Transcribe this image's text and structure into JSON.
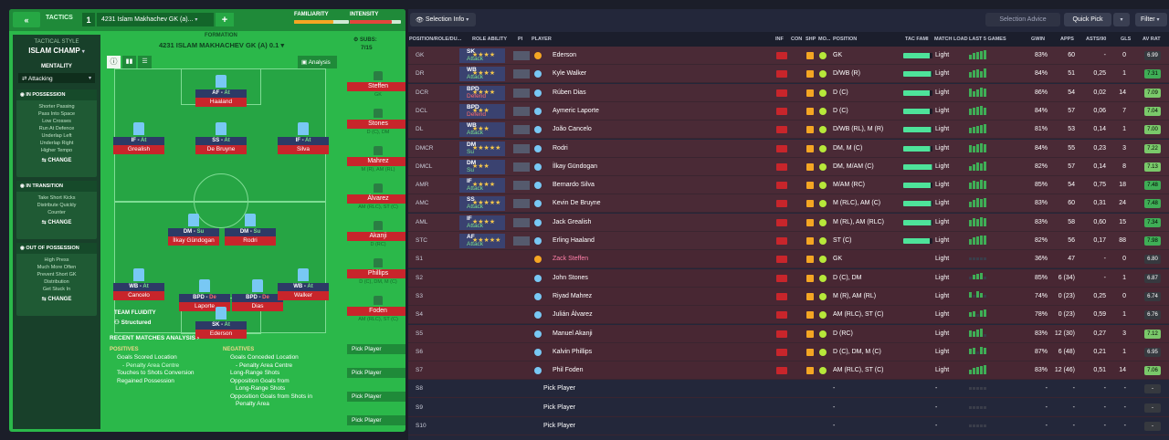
{
  "tactics": {
    "collapse_icon": "«",
    "header_label": "TACTICS",
    "slot_number": "1",
    "tactic_name": "4231 Islam Makhachev GK (a)...",
    "add_label": "+",
    "familiarity_label": "FAMILIARITY",
    "familiarity_value": 0.72,
    "intensity_label": "INTENSITY",
    "intensity_value": 0.82,
    "style_label": "TACTICAL STYLE",
    "style_name": "ISLAM CHAMP",
    "mentality_label": "MENTALITY",
    "mentality_value": "Attacking",
    "in_possession": {
      "title": "IN POSSESSION",
      "items": [
        "Shorter Passing",
        "Pass Into Space",
        "Low Crosses",
        "Run At Defence",
        "Underlap Left",
        "Underlap Right",
        "Higher Tempo"
      ],
      "change": "CHANGE"
    },
    "in_transition": {
      "title": "IN TRANSITION",
      "items": [
        "Take Short Kicks",
        "Distribute Quickly",
        "Counter"
      ],
      "change": "CHANGE"
    },
    "out_possession": {
      "title": "OUT OF POSSESSION",
      "items": [
        "High Press",
        "Much More Often",
        "Prevent Short GK",
        "Distribution",
        "Get Stuck In"
      ],
      "change": "CHANGE"
    },
    "formation_label": "FORMATION",
    "formation_name": "4231 ISLAM MAKHACHEV GK (A) 0.1",
    "subs_label": "SUBS:",
    "subs_count": "7/15",
    "analysis_label": "Analysis",
    "fluidity_label": "TEAM FLUIDITY",
    "fluidity_value": "Structured",
    "recent_label": "RECENT MATCHES ANALYSIS",
    "positives_label": "POSITIVES",
    "positives": [
      "Goals Scored Location",
      "- Penalty Area Centre",
      "Touches to Shots Conversion",
      "Regained Possession"
    ],
    "negatives_label": "NEGATIVES",
    "negatives": [
      "Goals Conceded Location",
      "- Penalty Area Centre",
      "Long-Range Shots",
      "Opposition Goals from",
      "Long-Range Shots",
      "Opposition Goals from Shots in",
      "Penalty Area"
    ],
    "players": [
      {
        "role": "AF",
        "duty": "At",
        "name": "Haaland"
      },
      {
        "role": "IF",
        "duty": "At",
        "name": "Grealish"
      },
      {
        "role": "SS",
        "duty": "At",
        "name": "De Bruyne"
      },
      {
        "role": "IF",
        "duty": "At",
        "name": "Silva"
      },
      {
        "role": "DM",
        "duty": "Su",
        "name": "İlkay Gündogan"
      },
      {
        "role": "DM",
        "duty": "Su",
        "name": "Rodri"
      },
      {
        "role": "WB",
        "duty": "At",
        "name": "Cancelo"
      },
      {
        "role": "BPD",
        "duty": "De",
        "name": "Laporte"
      },
      {
        "role": "BPD",
        "duty": "De",
        "name": "Dias"
      },
      {
        "role": "WB",
        "duty": "At",
        "name": "Walker"
      },
      {
        "role": "SK",
        "duty": "At",
        "name": "Ederson"
      }
    ],
    "subs": [
      {
        "name": "Steffen",
        "pos": "GK"
      },
      {
        "name": "Stones",
        "pos": "D (C), DM"
      },
      {
        "name": "Mahrez",
        "pos": "M (R), AM (RL)"
      },
      {
        "name": "Álvarez",
        "pos": "AM (RLC), ST (C)"
      },
      {
        "name": "Akanji",
        "pos": "D (RC)"
      },
      {
        "name": "Phillips",
        "pos": "D (C), DM, M (C)"
      },
      {
        "name": "Foden",
        "pos": "AM (RLC), ST (C)"
      }
    ],
    "pick_player": "Pick Player"
  },
  "squad": {
    "selection_info": "Selection Info",
    "selection_advice": "Selection Advice",
    "quick_pick": "Quick Pick",
    "filter": "Filter",
    "headers": [
      "POSITION/ROLE/DU...",
      "ROLE ABILITY",
      "PI",
      "PLAYER",
      "INF",
      "CON",
      "SHP",
      "MO...",
      "POSITION",
      "TAC FAMI",
      "MATCH LOAD",
      "LAST 5 GAMES",
      "GWIN",
      "APPS",
      "ASTS/90",
      "GLS",
      "AV RAT"
    ],
    "rows": [
      {
        "slot": "GK",
        "role": "SK",
        "duty": "Attack",
        "stars": "★★★★",
        "name": "Ederson",
        "position": "GK",
        "load": "Light",
        "gwin": "83%",
        "apps": "60",
        "asts": "-",
        "gls": "0",
        "rat": "6.99"
      },
      {
        "slot": "DR",
        "role": "WB",
        "duty": "Attack",
        "stars": "★★★★",
        "name": "Kyle Walker",
        "position": "D/WB (R)",
        "load": "Light",
        "gwin": "84%",
        "apps": "51",
        "asts": "0,25",
        "gls": "1",
        "rat": "7.31"
      },
      {
        "slot": "DCR",
        "role": "BPD",
        "duty": "Defend",
        "stars": "★★★★",
        "name": "Rúben Dias",
        "position": "D (C)",
        "load": "Light",
        "gwin": "86%",
        "apps": "54",
        "asts": "0,02",
        "gls": "14",
        "rat": "7.09"
      },
      {
        "slot": "DCL",
        "role": "BPD",
        "duty": "Defend",
        "stars": "★★★",
        "name": "Aymeric Laporte",
        "position": "D (C)",
        "load": "Light",
        "gwin": "84%",
        "apps": "57",
        "asts": "0,06",
        "gls": "7",
        "rat": "7.04"
      },
      {
        "slot": "DL",
        "role": "WB",
        "duty": "Attack",
        "stars": "★★★",
        "name": "João Cancelo",
        "position": "D/WB (RL), M (R)",
        "load": "Light",
        "gwin": "81%",
        "apps": "53",
        "asts": "0,14",
        "gls": "1",
        "rat": "7.00"
      },
      {
        "slot": "DMCR",
        "role": "DM",
        "duty": "Su",
        "stars": "★★★★★",
        "name": "Rodri",
        "position": "DM, M (C)",
        "load": "Light",
        "gwin": "84%",
        "apps": "55",
        "asts": "0,23",
        "gls": "3",
        "rat": "7.22"
      },
      {
        "slot": "DMCL",
        "role": "DM",
        "duty": "Su",
        "stars": "★★★",
        "name": "İlkay Gündogan",
        "position": "DM, M/AM (C)",
        "load": "Light",
        "gwin": "82%",
        "apps": "57",
        "asts": "0,14",
        "gls": "8",
        "rat": "7.13"
      },
      {
        "slot": "AMR",
        "role": "IF",
        "duty": "Attack",
        "stars": "★★★★",
        "name": "Bernardo Silva",
        "position": "M/AM (RC)",
        "load": "Light",
        "gwin": "85%",
        "apps": "54",
        "asts": "0,75",
        "gls": "18",
        "rat": "7.48"
      },
      {
        "slot": "AMC",
        "role": "SS",
        "duty": "Attack",
        "stars": "★★★★★",
        "name": "Kevin De Bruyne",
        "position": "M (RLC), AM (C)",
        "load": "Light",
        "gwin": "83%",
        "apps": "60",
        "asts": "0,31",
        "gls": "24",
        "rat": "7.48"
      },
      {
        "slot": "AML",
        "role": "IF",
        "duty": "Attack",
        "stars": "★★★★",
        "name": "Jack Grealish",
        "position": "M (RL), AM (RLC)",
        "load": "Light",
        "gwin": "83%",
        "apps": "58",
        "asts": "0,60",
        "gls": "15",
        "rat": "7.34"
      },
      {
        "slot": "STC",
        "role": "AF",
        "duty": "Attack",
        "stars": "★★★★★",
        "name": "Erling Haaland",
        "position": "ST (C)",
        "load": "Light",
        "gwin": "82%",
        "apps": "56",
        "asts": "0,17",
        "gls": "88",
        "rat": "7.98"
      },
      {
        "slot": "S1",
        "role": "",
        "duty": "",
        "stars": "",
        "name": "Zack Steffen",
        "position": "GK",
        "load": "Light",
        "gwin": "36%",
        "apps": "47",
        "asts": "-",
        "gls": "0",
        "rat": "6.80"
      },
      {
        "slot": "S2",
        "role": "",
        "duty": "",
        "stars": "",
        "name": "John Stones",
        "position": "D (C), DM",
        "load": "Light",
        "gwin": "85%",
        "apps": "6 (34)",
        "asts": "-",
        "gls": "1",
        "rat": "6.87"
      },
      {
        "slot": "S3",
        "role": "",
        "duty": "",
        "stars": "",
        "name": "Riyad Mahrez",
        "position": "M (R), AM (RL)",
        "load": "Light",
        "gwin": "74%",
        "apps": "0 (23)",
        "asts": "0,25",
        "gls": "0",
        "rat": "6.74"
      },
      {
        "slot": "S4",
        "role": "",
        "duty": "",
        "stars": "",
        "name": "Julián Álvarez",
        "position": "AM (RLC), ST (C)",
        "load": "Light",
        "gwin": "78%",
        "apps": "0 (23)",
        "asts": "0,59",
        "gls": "1",
        "rat": "6.76"
      },
      {
        "slot": "S5",
        "role": "",
        "duty": "",
        "stars": "",
        "name": "Manuel Akanji",
        "position": "D (RC)",
        "load": "Light",
        "gwin": "83%",
        "apps": "12 (30)",
        "asts": "0,27",
        "gls": "3",
        "rat": "7.12"
      },
      {
        "slot": "S6",
        "role": "",
        "duty": "",
        "stars": "",
        "name": "Kalvin Phillips",
        "position": "D (C), DM, M (C)",
        "load": "Light",
        "gwin": "87%",
        "apps": "6 (48)",
        "asts": "0,21",
        "gls": "1",
        "rat": "6.95"
      },
      {
        "slot": "S7",
        "role": "",
        "duty": "",
        "stars": "",
        "name": "Phil Foden",
        "position": "AM (RLC), ST (C)",
        "load": "Light",
        "gwin": "83%",
        "apps": "12 (46)",
        "asts": "0,51",
        "gls": "14",
        "rat": "7.06"
      },
      {
        "slot": "S8",
        "role": "",
        "duty": "",
        "stars": "",
        "name": "Pick Player",
        "position": "-",
        "load": "-",
        "gwin": "-",
        "apps": "-",
        "asts": "-",
        "gls": "-",
        "rat": "-"
      },
      {
        "slot": "S9",
        "role": "",
        "duty": "",
        "stars": "",
        "name": "Pick Player",
        "position": "-",
        "load": "-",
        "gwin": "-",
        "apps": "-",
        "asts": "-",
        "gls": "-",
        "rat": "-"
      },
      {
        "slot": "S10",
        "role": "",
        "duty": "",
        "stars": "",
        "name": "Pick Player",
        "position": "-",
        "load": "-",
        "gwin": "-",
        "apps": "-",
        "asts": "-",
        "gls": "-",
        "rat": "-"
      }
    ],
    "form": [
      [
        5,
        7,
        8,
        9,
        10
      ],
      [
        6,
        8,
        9,
        7,
        10
      ],
      [
        9,
        6,
        8,
        10,
        9
      ],
      [
        7,
        8,
        9,
        10,
        8
      ],
      [
        6,
        7,
        8,
        9,
        10
      ],
      [
        8,
        7,
        9,
        10,
        9
      ],
      [
        5,
        7,
        9,
        8,
        10
      ],
      [
        7,
        9,
        8,
        10,
        9
      ],
      [
        6,
        8,
        10,
        9,
        10
      ],
      [
        7,
        9,
        8,
        10,
        9
      ],
      [
        6,
        8,
        9,
        10,
        10
      ],
      [
        0,
        0,
        0,
        0,
        0
      ],
      [
        0,
        5,
        6,
        7,
        0
      ],
      [
        6,
        0,
        7,
        5,
        0
      ],
      [
        5,
        6,
        0,
        7,
        8
      ],
      [
        7,
        6,
        8,
        9,
        0
      ],
      [
        6,
        7,
        0,
        8,
        7
      ],
      [
        5,
        7,
        8,
        9,
        10
      ],
      [
        0,
        0,
        0,
        0,
        0
      ],
      [
        0,
        0,
        0,
        0,
        0
      ],
      [
        0,
        0,
        0,
        0,
        0
      ]
    ],
    "tac_fami": [
      0.9,
      0.95,
      0.9,
      0.9,
      0.95,
      0.92,
      0.98,
      0.94,
      0.95,
      0.95,
      0.9,
      0,
      0,
      0,
      0,
      0,
      0,
      0,
      0,
      0,
      0
    ]
  }
}
